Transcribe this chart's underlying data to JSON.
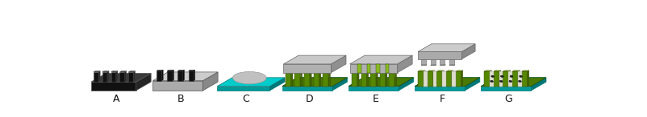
{
  "labels": [
    "A",
    "B",
    "C",
    "D",
    "E",
    "F",
    "G"
  ],
  "label_fontsize": 9,
  "label_color": "#111111",
  "teal_top": "#00CCCC",
  "teal_front": "#009999",
  "teal_side": "#007777",
  "black_top": "#3a3a3a",
  "black_front": "#111111",
  "black_side": "#252525",
  "dgray_top": "#999999",
  "dgray_front": "#777777",
  "dgray_side": "#555555",
  "lgray_top": "#cccccc",
  "lgray_front": "#aaaaaa",
  "lgray_side": "#888888",
  "green_base_top": "#4a7a00",
  "green_base_front": "#336600",
  "green_stripe_top": "#7aaa10",
  "green_stripe_front": "#558800",
  "green_stripe_side": "#446600",
  "white_stripe": "#d8d8d8",
  "cell_color": "#222222"
}
